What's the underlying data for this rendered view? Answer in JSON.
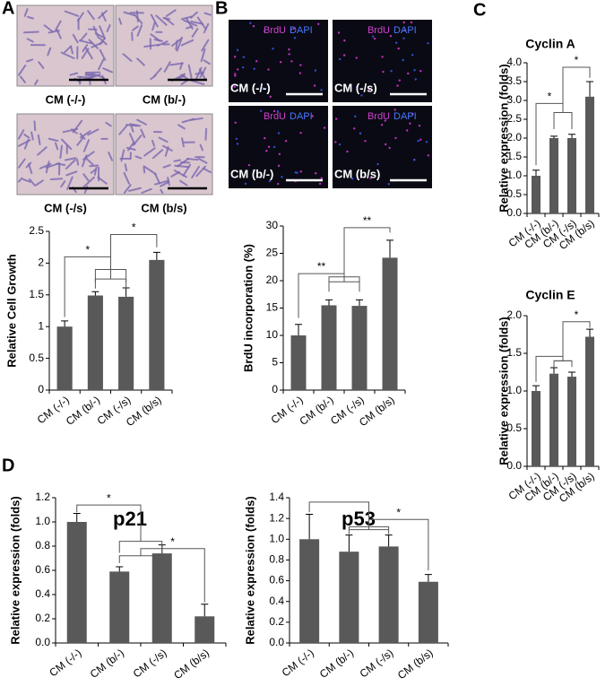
{
  "panel_labels": [
    "A",
    "B",
    "C",
    "D"
  ],
  "panel_a_images": [
    "CM (-/-)",
    "CM (b/-)",
    "CM (-/s)",
    "CM (b/s)"
  ],
  "panel_b_images": {
    "stains": [
      "BrdU",
      "DAPI"
    ],
    "captions": [
      "CM (-/-)",
      "CM (-/s)",
      "CM (b/-)",
      "CM (b/s)"
    ]
  },
  "chart_data": [
    {
      "type": "bar",
      "y_label": "Relative Cell Growth",
      "categories": [
        "CM (-/-)",
        "CM (b/-)",
        "CM (-/s)",
        "CM (b/s)"
      ],
      "values": [
        1.0,
        1.49,
        1.47,
        2.05
      ],
      "errors": [
        0.09,
        0.06,
        0.14,
        0.12
      ],
      "color": "#595959",
      "ylim": [
        0,
        2.5
      ],
      "yticks": [
        0,
        0.5,
        1,
        1.5,
        2,
        2.5
      ],
      "annotations": [
        "*",
        "*"
      ]
    },
    {
      "type": "bar",
      "y_label": "BrdU incorporation (%)",
      "categories": [
        "CM (-/-)",
        "CM (b/-)",
        "CM (-/s)",
        "CM (b/s)"
      ],
      "values": [
        10,
        15.5,
        15.4,
        24.2
      ],
      "errors": [
        2,
        1,
        1.1,
        3.2
      ],
      "color": "#595959",
      "ylim": [
        0,
        30
      ],
      "yticks": [
        0,
        5,
        10,
        15,
        20,
        25,
        30
      ],
      "annotations": [
        "**",
        "**"
      ]
    },
    {
      "type": "bar",
      "title": "Cyclin A",
      "y_label": "Relative expression (folds)",
      "categories": [
        "CM (-/-)",
        "CM (b/-)",
        "CM (-/s)",
        "CM (b/s)"
      ],
      "values": [
        1.0,
        2.0,
        2.0,
        3.1
      ],
      "errors": [
        0.15,
        0.05,
        0.1,
        0.4
      ],
      "color": "#595959",
      "ylim": [
        0,
        4
      ],
      "yticks": [
        {
          "value": 0,
          "label": "0.0"
        },
        0.5,
        {
          "value": 1,
          "label": "1.0"
        },
        1.5,
        {
          "value": 2,
          "label": "2.0"
        },
        2.5,
        {
          "value": 3,
          "label": "3.0"
        },
        3.5,
        {
          "value": 4,
          "label": "4.0"
        }
      ],
      "annotations": [
        "*",
        "*"
      ]
    },
    {
      "type": "bar",
      "title": "Cyclin E",
      "y_label": "Relative expression (folds)",
      "categories": [
        "CM (-/-)",
        "CM (b/-)",
        "CM (-/s)",
        "CM (b/s)"
      ],
      "values": [
        1.0,
        1.23,
        1.19,
        1.72
      ],
      "errors": [
        0.07,
        0.08,
        0.06,
        0.1
      ],
      "color": "#595959",
      "ylim": [
        0,
        2
      ],
      "yticks": [
        {
          "value": 0,
          "label": "0.0"
        },
        0.5,
        {
          "value": 1,
          "label": "1.0"
        },
        1.5,
        {
          "value": 2,
          "label": "2.0"
        }
      ],
      "annotations": [
        "*"
      ]
    },
    {
      "type": "bar",
      "title": "p21",
      "y_label": "Relative expression (folds)",
      "categories": [
        "CM (-/-)",
        "CM (b/-)",
        "CM (-/s)",
        "CM (b/s)"
      ],
      "values": [
        1.0,
        0.59,
        0.74,
        0.22
      ],
      "errors": [
        0.07,
        0.04,
        0.07,
        0.1
      ],
      "color": "#595959",
      "ylim": [
        0,
        1.2
      ],
      "yticks": [
        {
          "value": 0,
          "label": "0.0"
        },
        0.2,
        0.4,
        0.6,
        0.8,
        {
          "value": 1,
          "label": "1.0"
        },
        1.2
      ],
      "annotations": [
        "*",
        "*"
      ]
    },
    {
      "type": "bar",
      "title": "p53",
      "y_label": "Relative expression (folds)",
      "categories": [
        "CM (-/-)",
        "CM (b/-)",
        "CM (-/s)",
        "CM (b/s)"
      ],
      "values": [
        1.0,
        0.88,
        0.93,
        0.59
      ],
      "errors": [
        0.24,
        0.16,
        0.11,
        0.07
      ],
      "color": "#595959",
      "ylim": [
        0,
        1.4
      ],
      "yticks": [
        {
          "value": 0,
          "label": "0.0"
        },
        0.2,
        0.4,
        0.6,
        0.8,
        {
          "value": 1,
          "label": "1.0"
        },
        1.2,
        1.4
      ],
      "annotations": [
        "*"
      ]
    }
  ]
}
